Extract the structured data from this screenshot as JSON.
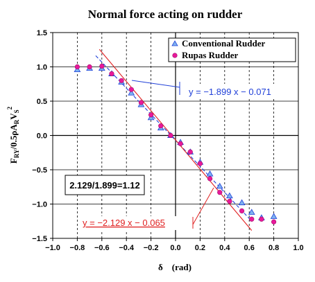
{
  "chart_data": {
    "type": "scatter",
    "title": "Normal force acting on rudder",
    "xlabel": "δ　(rad)",
    "ylabel_parts": {
      "f": "F",
      "f_sub": "RY",
      "mid": "/0.5ρA",
      "a_sub": "R",
      "v": "V",
      "v_sub": "S",
      "v_sup": "2"
    },
    "xlim": [
      -1.0,
      1.0
    ],
    "ylim": [
      -1.5,
      1.5
    ],
    "x_ticks": [
      "−1.0",
      "−0.8",
      "−0.6",
      "−0.4",
      "−0.2",
      "0.0",
      "0.2",
      "0.4",
      "0.6",
      "0.8",
      "1.0"
    ],
    "y_ticks": [
      "1.5",
      "1.0",
      "0.5",
      "0.0",
      "−0.5",
      "−1.0",
      "−1.5"
    ],
    "grid": true,
    "legend_position": "top-right",
    "series": [
      {
        "name": "Conventional Rudder",
        "marker": "triangle",
        "color": "#7fb2f0",
        "points": [
          [
            -0.8,
            0.96
          ],
          [
            -0.7,
            0.98
          ],
          [
            -0.6,
            0.98
          ],
          [
            -0.52,
            0.9
          ],
          [
            -0.44,
            0.78
          ],
          [
            -0.36,
            0.62
          ],
          [
            -0.28,
            0.45
          ],
          [
            -0.2,
            0.26
          ],
          [
            -0.12,
            0.11
          ],
          [
            -0.04,
            0.0
          ],
          [
            0.04,
            -0.1
          ],
          [
            0.12,
            -0.24
          ],
          [
            0.2,
            -0.39
          ],
          [
            0.28,
            -0.56
          ],
          [
            0.36,
            -0.74
          ],
          [
            0.44,
            -0.88
          ],
          [
            0.54,
            -0.98
          ],
          [
            0.62,
            -1.12
          ],
          [
            0.7,
            -1.2
          ],
          [
            0.8,
            -1.18
          ]
        ]
      },
      {
        "name": "Rupas Rudder",
        "marker": "circle",
        "color": "#e8199a",
        "points": [
          [
            -0.8,
            1.0
          ],
          [
            -0.7,
            1.0
          ],
          [
            -0.6,
            1.01
          ],
          [
            -0.52,
            0.9
          ],
          [
            -0.44,
            0.8
          ],
          [
            -0.36,
            0.67
          ],
          [
            -0.28,
            0.48
          ],
          [
            -0.2,
            0.3
          ],
          [
            -0.12,
            0.14
          ],
          [
            -0.04,
            0.0
          ],
          [
            0.04,
            -0.12
          ],
          [
            0.12,
            -0.24
          ],
          [
            0.2,
            -0.41
          ],
          [
            0.28,
            -0.63
          ],
          [
            0.36,
            -0.83
          ],
          [
            0.44,
            -0.96
          ],
          [
            0.54,
            -1.1
          ],
          [
            0.62,
            -1.22
          ],
          [
            0.7,
            -1.22
          ],
          [
            0.8,
            -1.26
          ]
        ]
      }
    ],
    "fit_lines": [
      {
        "equation": "y = −1.899 x − 0.071",
        "slope": -1.899,
        "intercept": -0.071,
        "x_range": [
          -0.65,
          0.62
        ],
        "color": "#1f3fd8",
        "dashed": true,
        "label_color": "#1f3fd8"
      },
      {
        "equation": "y = −2.129 x − 0.065",
        "slope": -2.129,
        "intercept": -0.065,
        "x_range": [
          -0.62,
          0.62
        ],
        "color": "#e02020",
        "dashed": false,
        "label_color": "#e02020"
      }
    ],
    "annotation": "2.129/1.899=1.12"
  }
}
